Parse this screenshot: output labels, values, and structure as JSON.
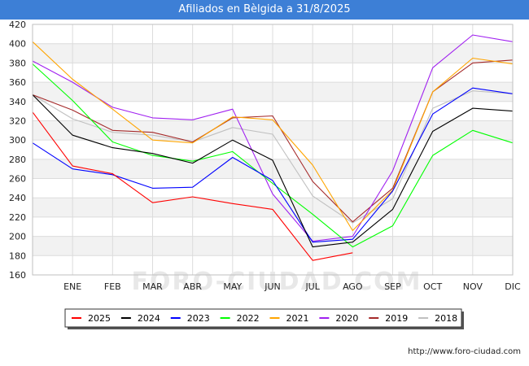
{
  "header": {
    "title": "Afiliados en Bèlgida a 31/8/2025"
  },
  "footer": {
    "source": "http://www.foro-ciudad.com"
  },
  "watermark": "FORO-CIUDAD.COM",
  "chart_data": {
    "type": "line",
    "title": "Afiliados en Bèlgida a 31/8/2025",
    "xlabel": "",
    "ylabel": "",
    "categories": [
      "",
      "ENE",
      "FEB",
      "MAR",
      "ABR",
      "MAY",
      "JUN",
      "JUL",
      "AGO",
      "SEP",
      "OCT",
      "NOV",
      "DIC"
    ],
    "ylim": [
      160,
      420
    ],
    "yticks": [
      160,
      180,
      200,
      220,
      240,
      260,
      280,
      300,
      320,
      340,
      360,
      380,
      400,
      420
    ],
    "grid": true,
    "legend_position": "bottom",
    "series": [
      {
        "name": "2025",
        "color": "#ff0000",
        "values": [
          329,
          273,
          265,
          235,
          241,
          234,
          228,
          175,
          183,
          null,
          null,
          null,
          null
        ]
      },
      {
        "name": "2024",
        "color": "#000000",
        "values": [
          347,
          305,
          292,
          286,
          276,
          300,
          279,
          189,
          194,
          228,
          309,
          333,
          330
        ]
      },
      {
        "name": "2023",
        "color": "#0000ff",
        "values": [
          297,
          270,
          264,
          250,
          251,
          282,
          258,
          194,
          197,
          247,
          327,
          354,
          348
        ]
      },
      {
        "name": "2022",
        "color": "#00ff00",
        "values": [
          379,
          341,
          298,
          284,
          278,
          288,
          255,
          223,
          189,
          211,
          284,
          310,
          297
        ]
      },
      {
        "name": "2021",
        "color": "#ffa500",
        "values": [
          402,
          363,
          332,
          300,
          297,
          324,
          321,
          274,
          206,
          248,
          350,
          385,
          379
        ]
      },
      {
        "name": "2020",
        "color": "#a020f0",
        "values": [
          382,
          360,
          334,
          323,
          321,
          332,
          244,
          195,
          200,
          268,
          375,
          409,
          402
        ]
      },
      {
        "name": "2019",
        "color": "#a52a2a",
        "values": [
          347,
          331,
          310,
          308,
          298,
          323,
          325,
          257,
          215,
          250,
          350,
          380,
          383
        ]
      },
      {
        "name": "2018",
        "color": "#c0c0c0",
        "values": [
          347,
          322,
          308,
          305,
          298,
          313,
          306,
          242,
          214,
          239,
          333,
          351,
          348
        ]
      }
    ]
  }
}
